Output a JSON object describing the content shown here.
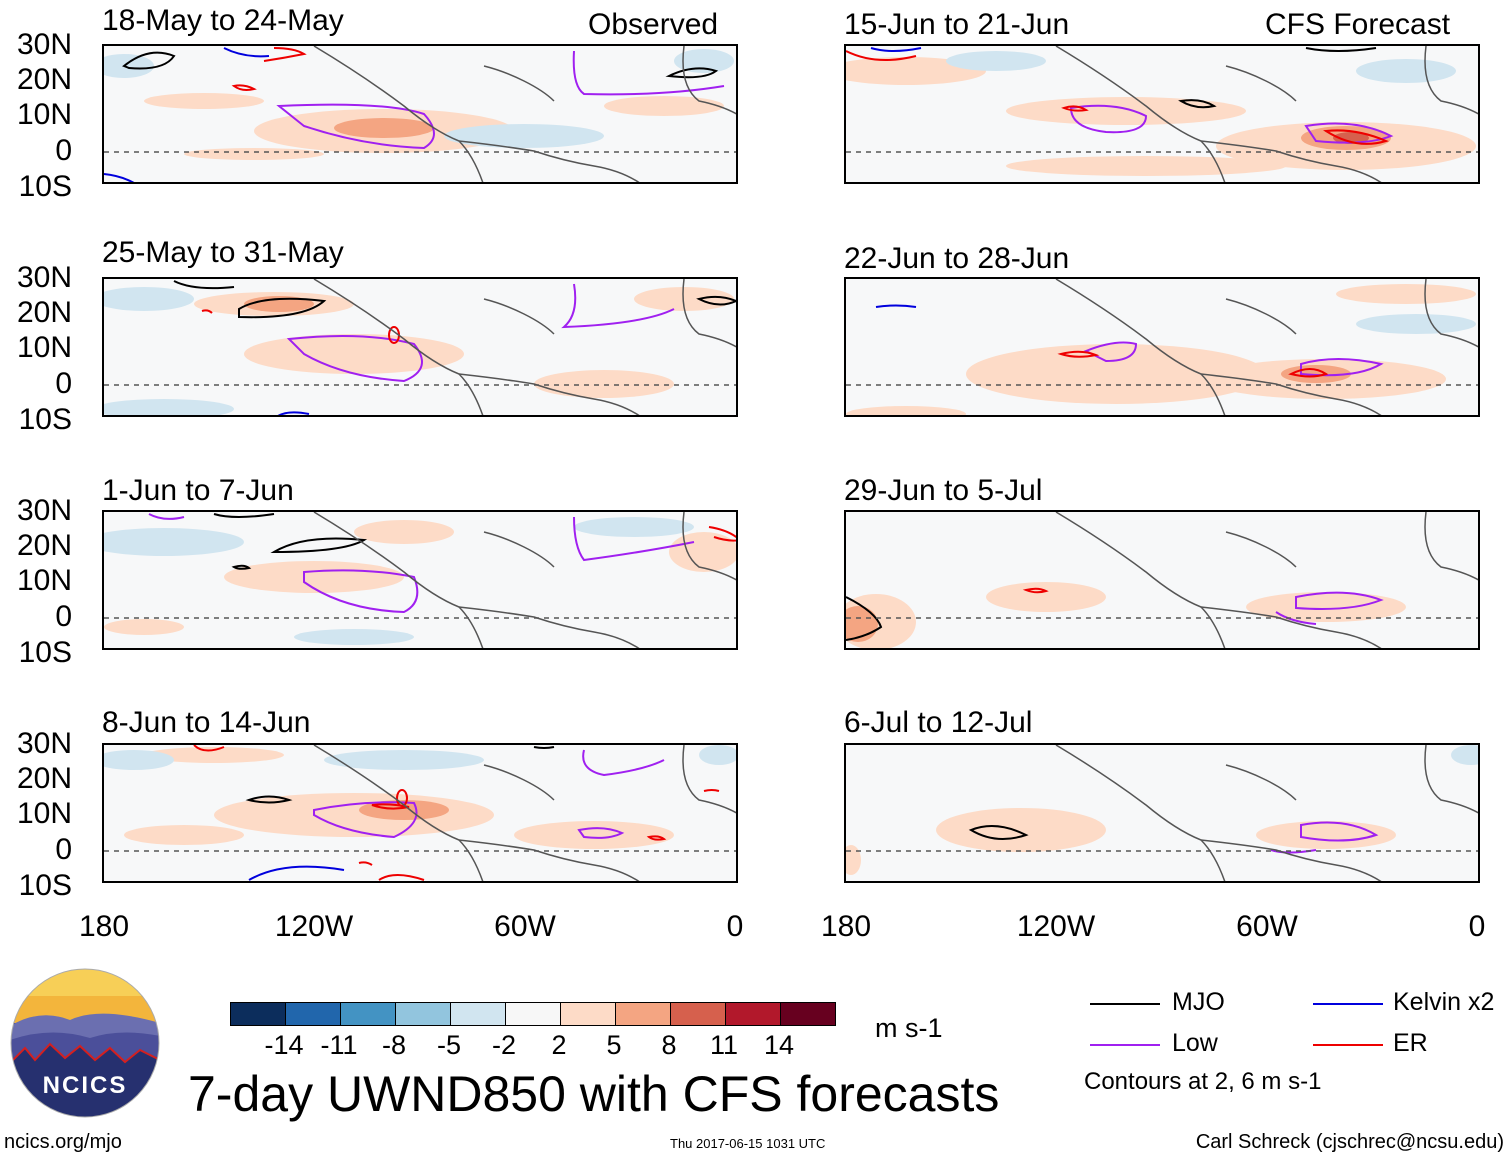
{
  "panels": [
    {
      "title": "18-May to 24-May",
      "tag": "Observed"
    },
    {
      "title": "25-May to 31-May"
    },
    {
      "title": "1-Jun to 7-Jun"
    },
    {
      "title": "8-Jun to 14-Jun"
    },
    {
      "title": "15-Jun to 21-Jun",
      "tag": "CFS Forecast"
    },
    {
      "title": "22-Jun to 28-Jun"
    },
    {
      "title": "29-Jun to 5-Jul"
    },
    {
      "title": "6-Jul to 12-Jul"
    }
  ],
  "y_axis_labels": [
    "30N",
    "20N",
    "10N",
    "0",
    "10S"
  ],
  "x_axis_labels": [
    "180",
    "120W",
    "60W",
    "0"
  ],
  "colorbar": {
    "labels": [
      "-14",
      "-11",
      "-8",
      "-5",
      "-2",
      "2",
      "5",
      "8",
      "11",
      "14"
    ],
    "colors": [
      "#0c2d5c",
      "#2166ac",
      "#4393c3",
      "#92c5de",
      "#d1e5f0",
      "#f7f7f7",
      "#fddbc7",
      "#f4a582",
      "#d6604d",
      "#b2182b",
      "#67001f"
    ],
    "units": "m s-1"
  },
  "legend": {
    "items": [
      {
        "label": "MJO",
        "color": "#000000"
      },
      {
        "label": "Kelvin x2",
        "color": "#0000dd"
      },
      {
        "label": "Low",
        "color": "#a020f0"
      },
      {
        "label": "ER",
        "color": "#ee0000"
      }
    ],
    "note": "Contours at 2, 6 m s-1"
  },
  "logo": {
    "text": "NCICS"
  },
  "title": "7-day UWND850 with CFS forecasts",
  "footer": {
    "left": "ncics.org/mjo",
    "center": "Thu 2017-06-15 1031 UTC",
    "right": "Carl Schreck (cjschrec@ncsu.edu)"
  }
}
